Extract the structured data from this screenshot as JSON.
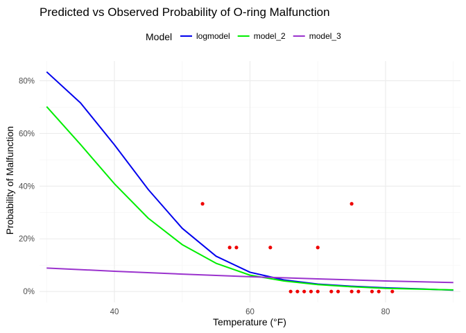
{
  "chart_data": {
    "type": "line",
    "title": "Predicted vs Observed Probability of O-ring Malfunction",
    "xlabel": "Temperature (°F)",
    "ylabel": "Probability of Malfunction",
    "xlim": [
      28.95,
      91.05
    ],
    "ylim": [
      -0.0417,
      0.875
    ],
    "x_ticks": [
      40,
      60,
      80
    ],
    "x_tick_labels": [
      "40",
      "60",
      "80"
    ],
    "x_minor_ticks": [
      30,
      50,
      70,
      90
    ],
    "y_ticks": [
      0,
      0.2,
      0.4,
      0.6,
      0.8
    ],
    "y_tick_labels": [
      "0%",
      "20%",
      "40%",
      "60%",
      "80%"
    ],
    "y_minor_ticks": [
      0.1,
      0.3,
      0.5,
      0.7
    ],
    "grid": true,
    "legend": {
      "title": "Model",
      "position": "top",
      "entries": [
        "logmodel",
        "model_2",
        "model_3"
      ]
    },
    "series": [
      {
        "name": "logmodel",
        "color": "#0000ee",
        "x": [
          30,
          35,
          40,
          45,
          50,
          55,
          60,
          65,
          70,
          75,
          80,
          85,
          90
        ],
        "values": [
          0.834,
          0.716,
          0.557,
          0.387,
          0.24,
          0.134,
          0.073,
          0.044,
          0.028,
          0.02,
          0.014,
          0.01,
          0.005
        ]
      },
      {
        "name": "model_2",
        "color": "#00ee00",
        "x": [
          30,
          35,
          40,
          45,
          50,
          55,
          60,
          65,
          70,
          75,
          80,
          85,
          90
        ],
        "values": [
          0.702,
          0.558,
          0.409,
          0.278,
          0.178,
          0.107,
          0.062,
          0.04,
          0.026,
          0.018,
          0.012,
          0.009,
          0.006
        ]
      },
      {
        "name": "model_3",
        "color": "#9a32cd",
        "x": [
          30,
          40,
          50,
          60,
          70,
          80,
          90
        ],
        "values": [
          0.089,
          0.077,
          0.066,
          0.056,
          0.048,
          0.04,
          0.034
        ]
      }
    ],
    "observed": {
      "color": "#ee0000",
      "points": [
        {
          "x": 53,
          "y": 0.333
        },
        {
          "x": 57,
          "y": 0.167
        },
        {
          "x": 58,
          "y": 0.167
        },
        {
          "x": 63,
          "y": 0.167
        },
        {
          "x": 66,
          "y": 0
        },
        {
          "x": 67,
          "y": 0
        },
        {
          "x": 68,
          "y": 0
        },
        {
          "x": 69,
          "y": 0
        },
        {
          "x": 70,
          "y": 0.167
        },
        {
          "x": 70,
          "y": 0
        },
        {
          "x": 72,
          "y": 0
        },
        {
          "x": 73,
          "y": 0
        },
        {
          "x": 75,
          "y": 0.333
        },
        {
          "x": 75,
          "y": 0
        },
        {
          "x": 76,
          "y": 0
        },
        {
          "x": 78,
          "y": 0
        },
        {
          "x": 79,
          "y": 0
        },
        {
          "x": 81,
          "y": 0
        }
      ]
    }
  }
}
